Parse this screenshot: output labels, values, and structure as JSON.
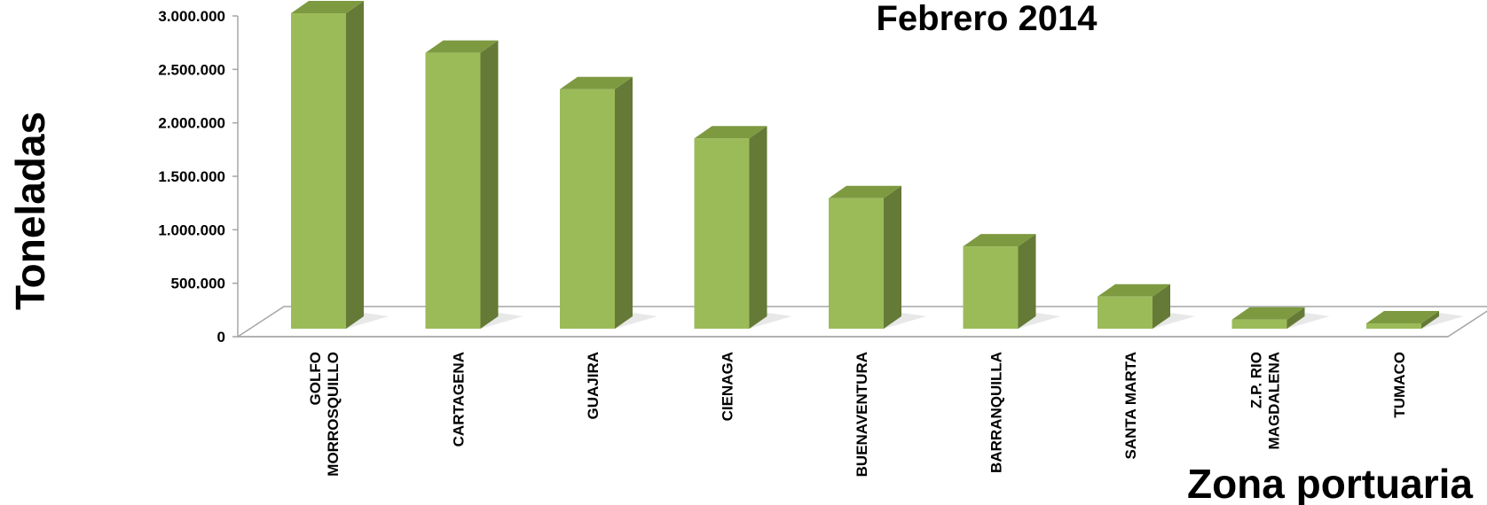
{
  "chart_data": {
    "type": "bar",
    "title": "Febrero 2014",
    "ylabel": "Toneladas",
    "xlabel": "Zona portuaria",
    "categories": [
      [
        "GOLFO",
        "MORROSQUILLO"
      ],
      [
        "CARTAGENA"
      ],
      [
        "GUAJIRA"
      ],
      [
        "CIENAGA"
      ],
      [
        "BUENAVENTURA"
      ],
      [
        "BARRANQUILLA"
      ],
      [
        "SANTA MARTA"
      ],
      [
        "Z.P. RIO",
        "MAGDALENA"
      ],
      [
        "TUMACO"
      ]
    ],
    "values": [
      2950000,
      2580000,
      2240000,
      1780000,
      1220000,
      770000,
      300000,
      85000,
      50000
    ],
    "ylim": [
      0,
      3000000
    ],
    "yticks": [
      "0",
      "500.000",
      "1.000.000",
      "1.500.000",
      "2.000.000",
      "2.500.000",
      "3.000.000"
    ],
    "grid": false,
    "colors": {
      "bar_front": "#9bbb59",
      "bar_side": "#657a36",
      "bar_top": "#7d9a41",
      "floor": "#ffffff",
      "floor_edge": "#a6a6a6"
    }
  }
}
